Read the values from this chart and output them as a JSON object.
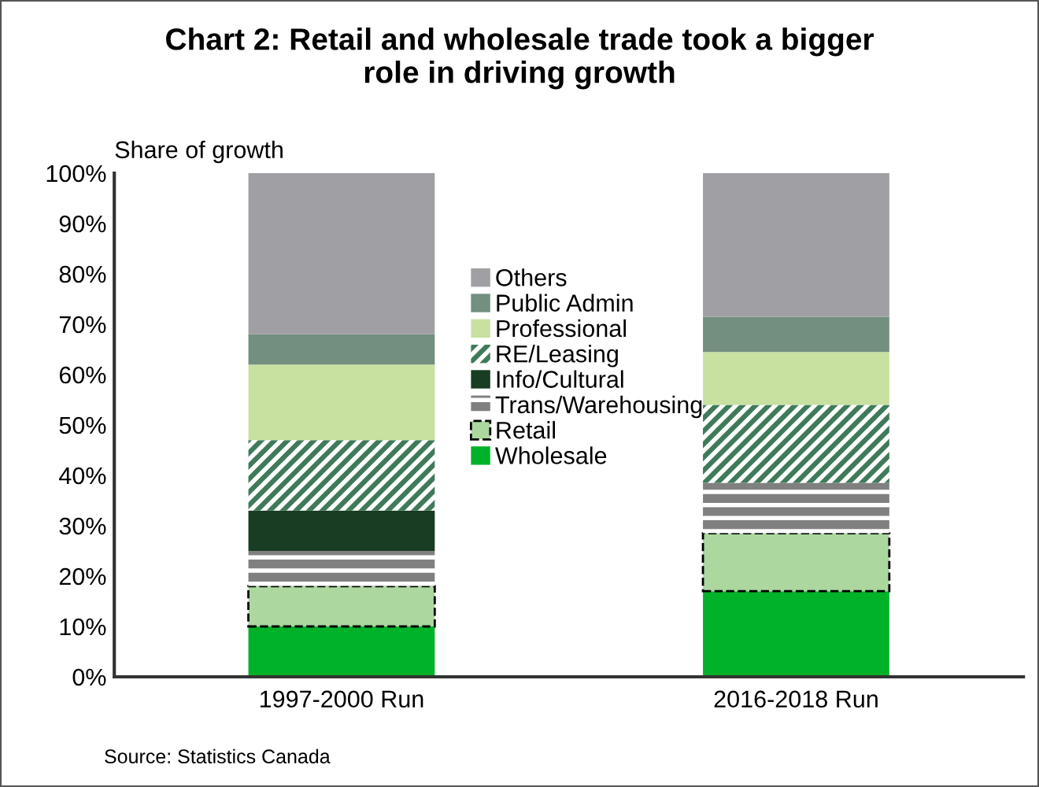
{
  "chart_data": {
    "type": "bar",
    "stacked": true,
    "title": "Chart 2: Retail and wholesale trade took a bigger\nrole in driving growth",
    "ylabel": "Share of growth",
    "categories": [
      "1997-2000 Run",
      "2016-2018 Run"
    ],
    "series": [
      {
        "name": "Wholesale",
        "color": "#00b22a",
        "values": [
          10,
          17
        ]
      },
      {
        "name": "Retail",
        "color": "#acd8a0",
        "values": [
          8,
          11.5
        ],
        "line_style": "dashed"
      },
      {
        "name": "Trans/Warehousing",
        "color": "#808080",
        "values": [
          7,
          10
        ]
      },
      {
        "name": "Info/Cultural",
        "color": "#183d22",
        "values": [
          8,
          0
        ]
      },
      {
        "name": "RE/Leasing",
        "color": "#3f7a5a",
        "values": [
          14,
          15.5
        ]
      },
      {
        "name": "Professional",
        "color": "#c8e0a0",
        "values": [
          15,
          10.5
        ]
      },
      {
        "name": "Public Admin",
        "color": "#728f80",
        "values": [
          6,
          7
        ]
      },
      {
        "name": "Others",
        "color": "#a0a0a4",
        "values": [
          32,
          28.5
        ]
      }
    ],
    "ylim": [
      0,
      100
    ],
    "yticks": [
      {
        "value": 0,
        "label": "0%"
      },
      {
        "value": 10,
        "label": "10%"
      },
      {
        "value": 20,
        "label": "20%"
      },
      {
        "value": 30,
        "label": "30%"
      },
      {
        "value": 40,
        "label": "40%"
      },
      {
        "value": 50,
        "label": "50%"
      },
      {
        "value": 60,
        "label": "60%"
      },
      {
        "value": 70,
        "label": "70%"
      },
      {
        "value": 80,
        "label": "80%"
      },
      {
        "value": 90,
        "label": "90%"
      },
      {
        "value": 100,
        "label": "100%"
      }
    ],
    "grid": false,
    "legend": "top",
    "annotations": [
      "Source: Statistics Canada"
    ]
  }
}
